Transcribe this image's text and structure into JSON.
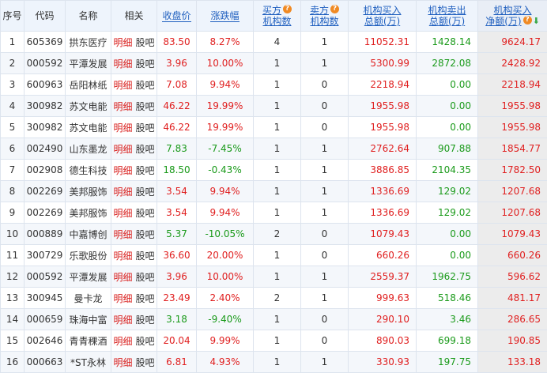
{
  "headers": {
    "idx": "序号",
    "code": "代码",
    "name": "名称",
    "related": "相关",
    "close": "收盘价",
    "change": "涨跌幅",
    "buy_inst_count": [
      "买方",
      "机构数"
    ],
    "sell_inst_count": [
      "卖方",
      "机构数"
    ],
    "inst_buy_total": [
      "机构买入",
      "总额(万)"
    ],
    "inst_sell_total": [
      "机构卖出",
      "总额(万)"
    ],
    "inst_net_buy": [
      "机构买入",
      "净额(万)"
    ]
  },
  "related_labels": {
    "detail": "明细",
    "bar": "股吧"
  },
  "rows": [
    {
      "idx": "1",
      "code": "605369",
      "name": "拱东医疗",
      "close": "83.50",
      "change": "8.27%",
      "dir": "up",
      "buy": "4",
      "sell": "1",
      "buy_total": "11052.31",
      "sell_total": "1428.14",
      "net": "9624.17"
    },
    {
      "idx": "2",
      "code": "000592",
      "name": "平潭发展",
      "close": "3.96",
      "change": "10.00%",
      "dir": "up",
      "buy": "1",
      "sell": "1",
      "buy_total": "5300.99",
      "sell_total": "2872.08",
      "net": "2428.92"
    },
    {
      "idx": "3",
      "code": "600963",
      "name": "岳阳林纸",
      "close": "7.08",
      "change": "9.94%",
      "dir": "up",
      "buy": "1",
      "sell": "0",
      "buy_total": "2218.94",
      "sell_total": "0.00",
      "net": "2218.94"
    },
    {
      "idx": "4",
      "code": "300982",
      "name": "苏文电能",
      "close": "46.22",
      "change": "19.99%",
      "dir": "up",
      "buy": "1",
      "sell": "0",
      "buy_total": "1955.98",
      "sell_total": "0.00",
      "net": "1955.98"
    },
    {
      "idx": "5",
      "code": "300982",
      "name": "苏文电能",
      "close": "46.22",
      "change": "19.99%",
      "dir": "up",
      "buy": "1",
      "sell": "0",
      "buy_total": "1955.98",
      "sell_total": "0.00",
      "net": "1955.98"
    },
    {
      "idx": "6",
      "code": "002490",
      "name": "山东墨龙",
      "close": "7.83",
      "change": "-7.45%",
      "dir": "down",
      "buy": "1",
      "sell": "1",
      "buy_total": "2762.64",
      "sell_total": "907.88",
      "net": "1854.77"
    },
    {
      "idx": "7",
      "code": "002908",
      "name": "德生科技",
      "close": "18.50",
      "change": "-0.43%",
      "dir": "down",
      "buy": "1",
      "sell": "1",
      "buy_total": "3886.85",
      "sell_total": "2104.35",
      "net": "1782.50"
    },
    {
      "idx": "8",
      "code": "002269",
      "name": "美邦服饰",
      "close": "3.54",
      "change": "9.94%",
      "dir": "up",
      "buy": "1",
      "sell": "1",
      "buy_total": "1336.69",
      "sell_total": "129.02",
      "net": "1207.68"
    },
    {
      "idx": "9",
      "code": "002269",
      "name": "美邦服饰",
      "close": "3.54",
      "change": "9.94%",
      "dir": "up",
      "buy": "1",
      "sell": "1",
      "buy_total": "1336.69",
      "sell_total": "129.02",
      "net": "1207.68"
    },
    {
      "idx": "10",
      "code": "000889",
      "name": "中嘉博创",
      "close": "5.37",
      "change": "-10.05%",
      "dir": "down",
      "buy": "2",
      "sell": "0",
      "buy_total": "1079.43",
      "sell_total": "0.00",
      "net": "1079.43"
    },
    {
      "idx": "11",
      "code": "300729",
      "name": "乐歌股份",
      "close": "36.60",
      "change": "20.00%",
      "dir": "up",
      "buy": "1",
      "sell": "0",
      "buy_total": "660.26",
      "sell_total": "0.00",
      "net": "660.26"
    },
    {
      "idx": "12",
      "code": "000592",
      "name": "平潭发展",
      "close": "3.96",
      "change": "10.00%",
      "dir": "up",
      "buy": "1",
      "sell": "1",
      "buy_total": "2559.37",
      "sell_total": "1962.75",
      "net": "596.62"
    },
    {
      "idx": "13",
      "code": "300945",
      "name": "曼卡龙",
      "close": "23.49",
      "change": "2.40%",
      "dir": "up",
      "buy": "2",
      "sell": "1",
      "buy_total": "999.63",
      "sell_total": "518.46",
      "net": "481.17"
    },
    {
      "idx": "14",
      "code": "000659",
      "name": "珠海中富",
      "close": "3.18",
      "change": "-9.40%",
      "dir": "down",
      "buy": "1",
      "sell": "0",
      "buy_total": "290.10",
      "sell_total": "3.46",
      "net": "286.65"
    },
    {
      "idx": "15",
      "code": "002646",
      "name": "青青稞酒",
      "close": "20.04",
      "change": "9.99%",
      "dir": "up",
      "buy": "1",
      "sell": "0",
      "buy_total": "890.03",
      "sell_total": "699.18",
      "net": "190.85"
    },
    {
      "idx": "16",
      "code": "000663",
      "name": "*ST永林",
      "close": "6.81",
      "change": "4.93%",
      "dir": "up",
      "buy": "1",
      "sell": "1",
      "buy_total": "330.93",
      "sell_total": "197.75",
      "net": "133.18"
    }
  ],
  "colors": {
    "up": "#e02020",
    "down": "#1a9a1a",
    "header_bg": "#eef4fc",
    "link": "#1f5fbf"
  }
}
